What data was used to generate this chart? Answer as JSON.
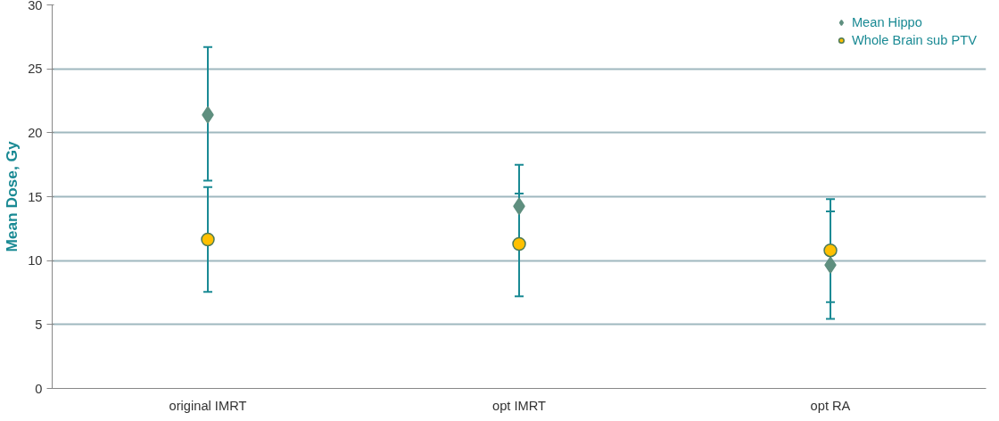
{
  "chart_data": {
    "type": "scatter",
    "ylabel": "Mean Dose, Gy",
    "categories": [
      "original IMRT",
      "opt IMRT",
      "opt RA"
    ],
    "series": [
      {
        "name": "Mean Hippo",
        "color": "#5f8f7f",
        "marker": "diamond",
        "values": [
          21.4,
          14.25,
          9.65
        ],
        "errors": [
          [
            16.25,
            26.7
          ],
          [
            11.0,
            17.5
          ],
          [
            5.45,
            13.85
          ]
        ]
      },
      {
        "name": "Whole Brain sub PTV",
        "color": "#ffc000",
        "marker": "circle",
        "values": [
          11.65,
          11.3,
          10.8
        ],
        "errors": [
          [
            7.55,
            15.75
          ],
          [
            7.2,
            15.25
          ],
          [
            6.75,
            14.8
          ]
        ]
      }
    ],
    "ylim": [
      0,
      30
    ],
    "yticks": [
      0,
      5,
      10,
      15,
      20,
      25,
      30
    ],
    "grid": "y",
    "legend": "top right"
  }
}
